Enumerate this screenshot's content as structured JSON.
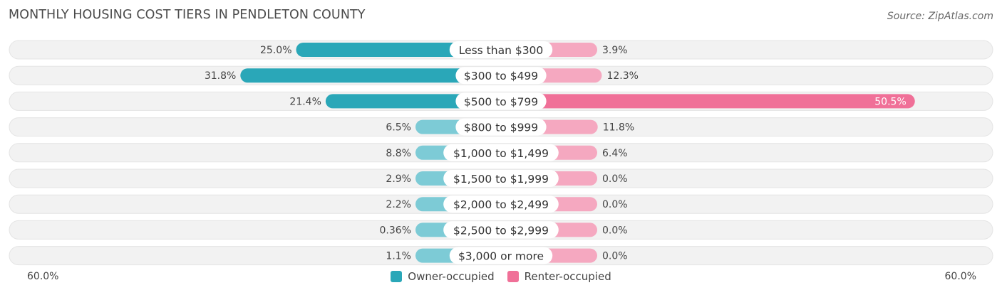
{
  "header": {
    "title": "MONTHLY HOUSING COST TIERS IN PENDLETON COUNTY",
    "source": "Source: ZipAtlas.com"
  },
  "legend": {
    "owner_label": "Owner-occupied",
    "renter_label": "Renter-occupied"
  },
  "axis": {
    "left_label": "60.0%",
    "right_label": "60.0%"
  },
  "colors": {
    "owner_strong": "#2aa7b8",
    "owner_light": "#7dcbd6",
    "renter_strong": "#f07098",
    "renter_light": "#f5a8c0",
    "track": "#f2f2f2"
  },
  "chart_data": {
    "type": "bar",
    "orientation": "horizontal-diverging",
    "title": "MONTHLY HOUSING COST TIERS IN PENDLETON COUNTY",
    "xlim": [
      -60,
      60
    ],
    "categories": [
      "Less than $300",
      "$300 to $499",
      "$500 to $799",
      "$800 to $999",
      "$1,000 to $1,499",
      "$1,500 to $1,999",
      "$2,000 to $2,499",
      "$2,500 to $2,999",
      "$3,000 or more"
    ],
    "series": [
      {
        "name": "Owner-occupied",
        "values": [
          25.0,
          31.8,
          21.4,
          6.5,
          8.8,
          2.9,
          2.2,
          0.36,
          1.1
        ],
        "labels": [
          "25.0%",
          "31.8%",
          "21.4%",
          "6.5%",
          "8.8%",
          "2.9%",
          "2.2%",
          "0.36%",
          "1.1%"
        ]
      },
      {
        "name": "Renter-occupied",
        "values": [
          3.9,
          12.3,
          50.5,
          11.8,
          6.4,
          0.0,
          0.0,
          0.0,
          0.0
        ],
        "labels": [
          "3.9%",
          "12.3%",
          "50.5%",
          "11.8%",
          "6.4%",
          "0.0%",
          "0.0%",
          "0.0%",
          "0.0%"
        ]
      }
    ]
  }
}
